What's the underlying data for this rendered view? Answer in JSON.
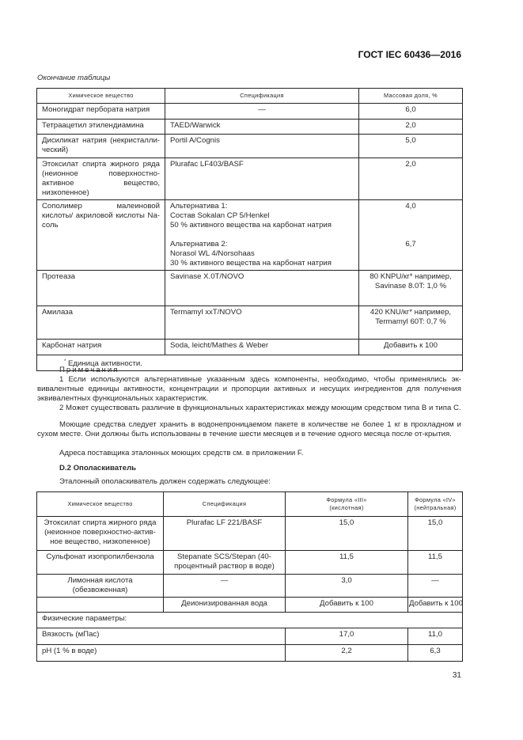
{
  "header": {
    "doc_id": "ГОСТ IEC 60436—2016"
  },
  "table1": {
    "caption": "Окончание таблицы",
    "columns": [
      "Химическое вещество",
      "Спецификация",
      "Массовая доля, %"
    ],
    "rows": [
      {
        "substance": "Моногидрат пербората натрия",
        "spec": "—",
        "mass": "6,0"
      },
      {
        "substance": "Тетраацетил этилендиамина",
        "spec": "TAED/Warwick",
        "mass": "2,0"
      },
      {
        "substance": "Дисиликат натрия (некристалли-ческий)",
        "spec": "Portil A/Cognis",
        "mass": "5,0"
      },
      {
        "substance": "Этоксилат спирта жирного ряда (неионное поверхностно-активное вещество, низкопенное)",
        "spec": "Plurafac LF403/BASF",
        "mass": "2,0"
      },
      {
        "substance": "Сополимер малеиновой кислоты/ акриловой кислоты Na-соль",
        "alt1": {
          "title": "Альтернатива 1:",
          "line1": "Состав Sokalan CP 5/Henkel",
          "line2": "50 % активного вещества на карбонат натрия",
          "mass": "4,0"
        },
        "alt2": {
          "title": "Альтернатива 2:",
          "line1": "Norasol WL 4/Norsohaas",
          "line2": "30 % активного вещества на карбонат натрия",
          "mass": "6,7"
        }
      },
      {
        "substance": "Протеаза",
        "spec": "Savinase X.0T/NOVO",
        "mass": "80 KNPU/кг* например, Savinase 8.0T: 1,0 %"
      },
      {
        "substance": "Амилаза",
        "spec": "Termamyl xxT/NOVO",
        "mass": "420 KNU/кг* например, Termamyl 60T: 0,7 %"
      },
      {
        "substance": "Карбонат натрия",
        "spec": "Soda, leicht/Mathes & Weber",
        "mass": "Добавить к 100"
      }
    ],
    "footnote_mark": "*",
    "footnote": "Единица активности."
  },
  "notes": {
    "title": "Примечания",
    "n1": "1 Если используются альтернативные указанным здесь компоненты, необходимо, чтобы применялись эк-вивалентные единицы активности, концентрации и пропорции активных и несущих ингредиентов для получения эквивалентных функциональных характеристик.",
    "n2": "2 Может существовать различие в функциональных характеристиках между моющим средством типа В и типа С."
  },
  "para1": "Моющие средства следует хранить в водонепроницаемом пакете в количестве не более 1 кг в прохладном и сухом месте. Они должны быть использованы в течение шести месяцев и в течение одного месяца после от-крытия.",
  "para2": "Адреса поставщика эталонных моющих средств см. в приложении F.",
  "section": {
    "title": "D.2 Ополаскиватель",
    "intro": "Эталонный ополаскиватель должен содержать следующее:"
  },
  "table2": {
    "columns": [
      "Химическое вещество",
      "Спецификация",
      "Формула «III» (кислотная)",
      "Формула «IV» (нейтральная)"
    ],
    "rows": [
      {
        "substance": "Этоксилат спирта жирного ряда (неионное поверхностно-актив-ное вещество, низкопенное)",
        "spec": "Plurafac LF 221/BASF",
        "f3": "15,0",
        "f4": "15,0"
      },
      {
        "substance": "Сульфонат изопропилбензола",
        "spec": "Stepanate SCS/Stepan (40-процентный раствор в воде)",
        "f3": "11,5",
        "f4": "11,5"
      },
      {
        "substance": "Лимонная кислота (обезвоженная)",
        "spec": "—",
        "f3": "3,0",
        "f4": "—"
      },
      {
        "substance": "",
        "spec": "Деионизированная вода",
        "f3": "Добавить к 100",
        "f4": "Добавить к 100"
      }
    ],
    "physical_label": "Физические параметры:",
    "params": [
      {
        "name": "Вязкость (мПас)",
        "f3": "17,0",
        "f4": "11,0"
      },
      {
        "name": "pH (1 % в воде)",
        "f3": "2,2",
        "f4": "6,3"
      }
    ]
  },
  "page_number": "31"
}
